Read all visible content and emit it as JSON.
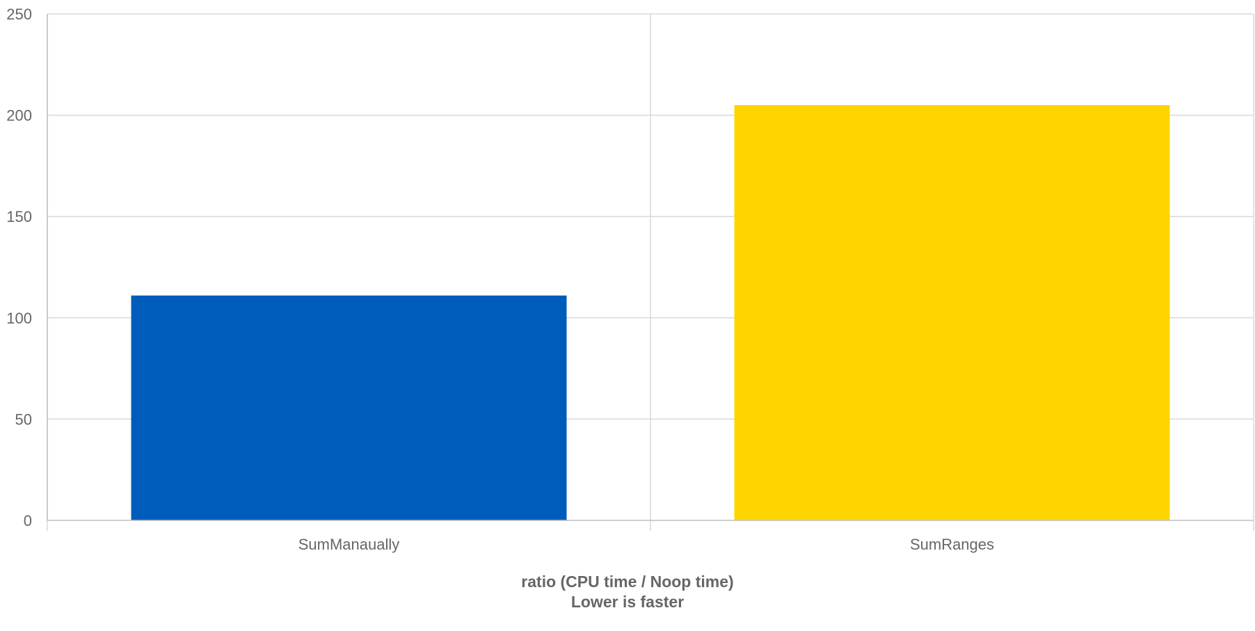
{
  "chart_data": {
    "type": "bar",
    "categories": [
      "SumManaually",
      "SumRanges"
    ],
    "values": [
      111,
      205
    ],
    "colors": [
      "#005cbb",
      "#ffd500"
    ],
    "ylim": [
      0,
      250
    ],
    "yticks": [
      0,
      50,
      100,
      150,
      200,
      250
    ],
    "xlabel_lines": [
      "ratio (CPU time / Noop time)",
      "Lower is faster"
    ],
    "ylabel": "",
    "title": "",
    "grid": true,
    "legend": "none"
  },
  "style": {
    "grid_color": "#d9d9d9",
    "axis_color": "#bfbfbf",
    "text_color": "#666666"
  }
}
